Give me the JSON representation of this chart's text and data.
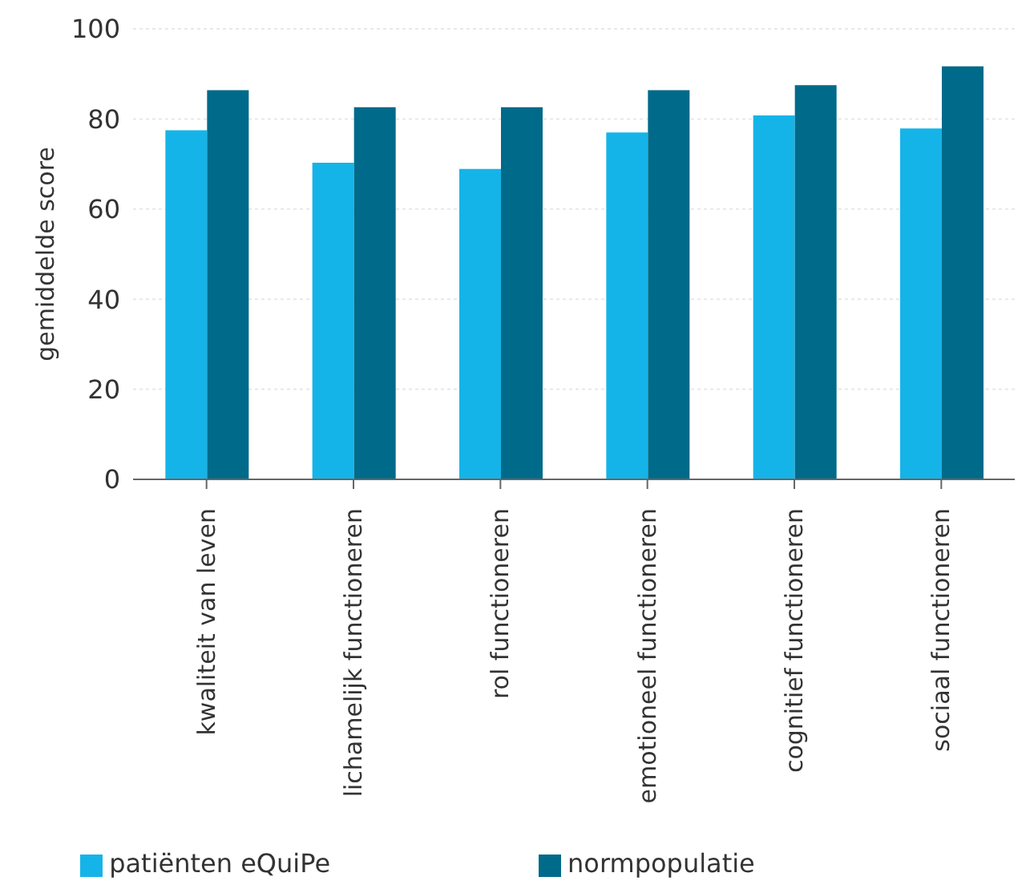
{
  "chart_data": {
    "type": "bar",
    "ylabel": "gemiddelde score",
    "categories": [
      "kwaliteit van leven",
      "lichamelijk functioneren",
      "rol functioneren",
      "emotioneel functioneren",
      "cognitief functioneren",
      "sociaal functioneren"
    ],
    "series": [
      {
        "name": "patiënten eQuiPe",
        "color": "#15b4e8",
        "values": [
          77.5,
          70.3,
          68.9,
          77.0,
          80.8,
          77.9
        ]
      },
      {
        "name": "normpopulatie",
        "color": "#006a8a",
        "values": [
          86.4,
          82.6,
          82.6,
          86.4,
          87.5,
          91.7
        ]
      }
    ],
    "ylim": [
      0,
      100
    ],
    "yticks": [
      0,
      20,
      40,
      60,
      80,
      100
    ],
    "grid": "y",
    "legend": "bottom"
  }
}
